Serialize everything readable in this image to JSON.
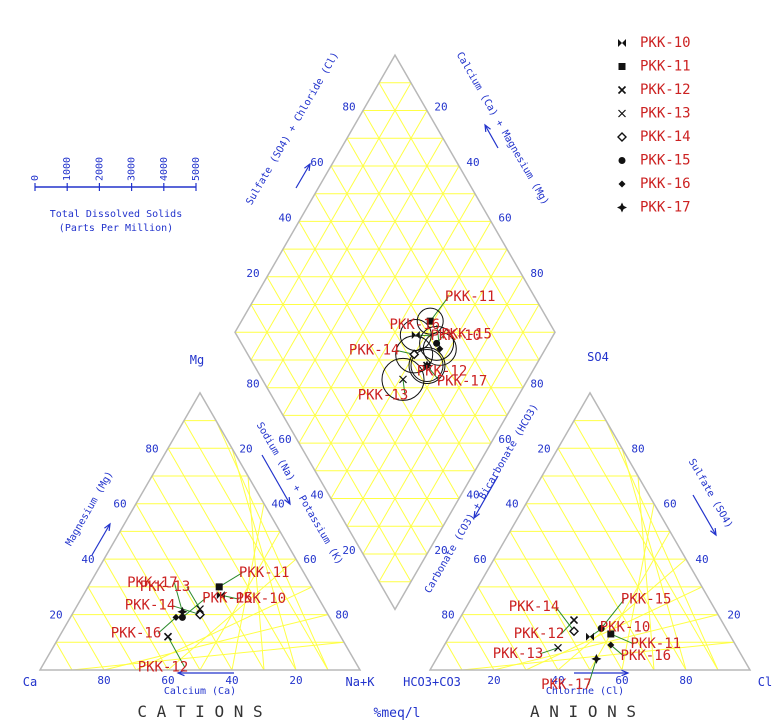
{
  "chart_data": {
    "type": "scatter",
    "subtype": "piper-trilinear",
    "colors": {
      "lines": "#ffff44",
      "border": "#b8b8b8",
      "axis_text": "#2233cc",
      "labels": "#cc2222",
      "markers": "#111111",
      "tie_line": "#2a8a2a"
    },
    "text": {
      "cations": "C A T I O N S",
      "anions": "A N I O N S",
      "units": "%meq/l",
      "ca": "Ca",
      "mg": "Mg",
      "nak": "Na+K",
      "hco3co3": "HCO3+CO3",
      "so4": "SO4",
      "cl": "Cl",
      "calcium_axis": "Calcium (Ca)",
      "chlorine_axis": "Chlorine (Cl)",
      "magnesium_axis": "Magnesium (Mg)",
      "sodium_axis": "Sodium (Na) + Potassium (K)",
      "carbonate_axis": "Carbonate (CO3) + Bicarbonate (HCO3)",
      "sulfate_axis": "Sulfate (SO4)",
      "diamond_left_axis": "Sulfate (SO4) + Chloride (Cl)",
      "diamond_right_axis": "Calcium (Ca) + Magnesium (Mg)",
      "tds_title": "Total Dissolved Solids",
      "tds_units": "(Parts Per Million)",
      "tds_ticks": [
        "0",
        "1000",
        "2000",
        "3000",
        "4000",
        "5000"
      ],
      "ticks": [
        "20",
        "40",
        "60",
        "80"
      ]
    },
    "legend_position": "top-right",
    "series": [
      {
        "name": "PKK-10",
        "marker": "bowtie",
        "ca": 30,
        "mg": 27,
        "nak": 43,
        "co3hco3": 44,
        "so4": 12,
        "cl": 44,
        "tds": 1500
      },
      {
        "name": "PKK-11",
        "marker": "square",
        "ca": 29,
        "mg": 30,
        "nak": 41,
        "co3hco3": 37,
        "so4": 13,
        "cl": 50,
        "tds": 1000
      },
      {
        "name": "PKK-12",
        "marker": "x",
        "ca": 54,
        "mg": 12,
        "nak": 34,
        "co3hco3": 46,
        "so4": 18,
        "cl": 36,
        "tds": 2000
      },
      {
        "name": "PKK-13",
        "marker": "cross",
        "ca": 39,
        "mg": 22,
        "nak": 39,
        "co3hco3": 56,
        "so4": 8,
        "cl": 36,
        "tds": 2600
      },
      {
        "name": "PKK-14",
        "marker": "diamond",
        "ca": 40,
        "mg": 20,
        "nak": 40,
        "co3hco3": 48,
        "so4": 14,
        "cl": 38,
        "tds": 2100
      },
      {
        "name": "PKK-15",
        "marker": "dot",
        "ca": 46,
        "mg": 19,
        "nak": 35,
        "co3hco3": 39,
        "so4": 15,
        "cl": 46,
        "tds": 1800
      },
      {
        "name": "PKK-16",
        "marker": "small-diamond",
        "ca": 48,
        "mg": 19,
        "nak": 33,
        "co3hco3": 39,
        "so4": 9,
        "cl": 52,
        "tds": 1700
      },
      {
        "name": "PKK-17",
        "marker": "star",
        "ca": 45,
        "mg": 21,
        "nak": 34,
        "co3hco3": 46,
        "so4": 4,
        "cl": 50,
        "tds": 1600
      }
    ]
  }
}
